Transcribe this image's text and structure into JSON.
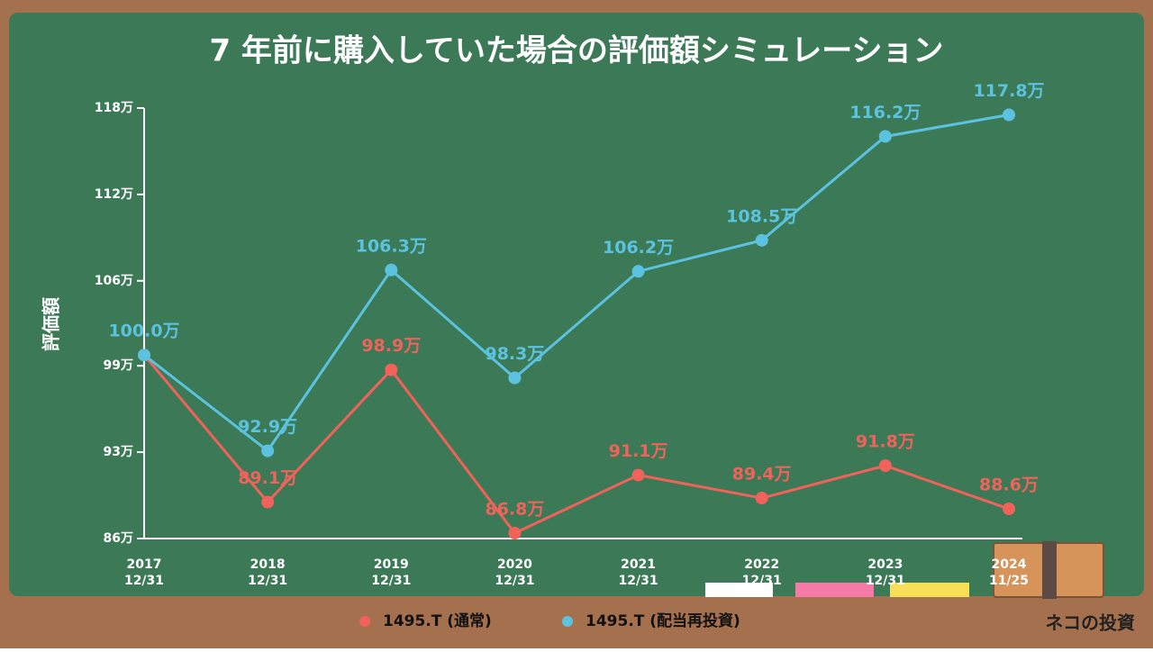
{
  "chart_data": {
    "type": "line",
    "title": "7 年前に購入していた場合の評価額シミュレーション",
    "y_label": "評価額",
    "categories": [
      [
        "2017",
        "12/31"
      ],
      [
        "2018",
        "12/31"
      ],
      [
        "2019",
        "12/31"
      ],
      [
        "2020",
        "12/31"
      ],
      [
        "2021",
        "12/31"
      ],
      [
        "2022",
        "12/31"
      ],
      [
        "2023",
        "12/31"
      ],
      [
        "2024",
        "11/25"
      ]
    ],
    "series": [
      {
        "name": "1495.T (通常)",
        "color": "#f0625a",
        "values": [
          100.0,
          89.1,
          98.9,
          86.8,
          91.1,
          89.4,
          91.8,
          88.6
        ],
        "value_labels": [
          "100.0万",
          "89.1万",
          "98.9万",
          "86.8万",
          "91.1万",
          "89.4万",
          "91.8万",
          "88.6万"
        ]
      },
      {
        "name": "1495.T (配当再投資)",
        "color": "#5bc3df",
        "values": [
          100.0,
          92.9,
          106.3,
          98.3,
          106.2,
          108.5,
          116.2,
          117.8
        ],
        "value_labels": [
          "100.0万",
          "92.9万",
          "106.3万",
          "98.3万",
          "106.2万",
          "108.5万",
          "116.2万",
          "117.8万"
        ]
      }
    ],
    "ylim": [
      86.4,
      118.3
    ],
    "yticks": [
      {
        "value": 86.4,
        "label": "86万"
      },
      {
        "value": 92.8,
        "label": "93万"
      },
      {
        "value": 99.2,
        "label": "99万"
      },
      {
        "value": 105.5,
        "label": "106万"
      },
      {
        "value": 111.9,
        "label": "112万"
      },
      {
        "value": 118.3,
        "label": "118万"
      }
    ],
    "legend_position": "bottom",
    "brand": "ネコの投資"
  }
}
